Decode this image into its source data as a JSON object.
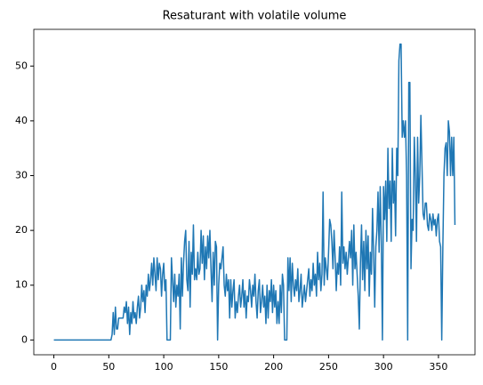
{
  "chart_data": {
    "type": "line",
    "title": "Resaturant with volatile volume",
    "x": [
      0,
      1,
      2,
      3,
      4,
      5,
      6,
      7,
      8,
      9,
      10,
      11,
      12,
      13,
      14,
      15,
      16,
      17,
      18,
      19,
      20,
      21,
      22,
      23,
      24,
      25,
      26,
      27,
      28,
      29,
      30,
      31,
      32,
      33,
      34,
      35,
      36,
      37,
      38,
      39,
      40,
      41,
      42,
      43,
      44,
      45,
      46,
      47,
      48,
      49,
      50,
      51,
      52,
      53,
      54,
      55,
      56,
      57,
      58,
      59,
      60,
      61,
      62,
      63,
      64,
      65,
      66,
      67,
      68,
      69,
      70,
      71,
      72,
      73,
      74,
      75,
      76,
      77,
      78,
      79,
      80,
      81,
      82,
      83,
      84,
      85,
      86,
      87,
      88,
      89,
      90,
      91,
      92,
      93,
      94,
      95,
      96,
      97,
      98,
      99,
      100,
      101,
      102,
      103,
      104,
      105,
      106,
      107,
      108,
      109,
      110,
      111,
      112,
      113,
      114,
      115,
      116,
      117,
      118,
      119,
      120,
      121,
      122,
      123,
      124,
      125,
      126,
      127,
      128,
      129,
      130,
      131,
      132,
      133,
      134,
      135,
      136,
      137,
      138,
      139,
      140,
      141,
      142,
      143,
      144,
      145,
      146,
      147,
      148,
      149,
      150,
      151,
      152,
      153,
      154,
      155,
      156,
      157,
      158,
      159,
      160,
      161,
      162,
      163,
      164,
      165,
      166,
      167,
      168,
      169,
      170,
      171,
      172,
      173,
      174,
      175,
      176,
      177,
      178,
      179,
      180,
      181,
      182,
      183,
      184,
      185,
      186,
      187,
      188,
      189,
      190,
      191,
      192,
      193,
      194,
      195,
      196,
      197,
      198,
      199,
      200,
      201,
      202,
      203,
      204,
      205,
      206,
      207,
      208,
      209,
      210,
      211,
      212,
      213,
      214,
      215,
      216,
      217,
      218,
      219,
      220,
      221,
      222,
      223,
      224,
      225,
      226,
      227,
      228,
      229,
      230,
      231,
      232,
      233,
      234,
      235,
      236,
      237,
      238,
      239,
      240,
      241,
      242,
      243,
      244,
      245,
      246,
      247,
      248,
      249,
      250,
      251,
      252,
      253,
      254,
      255,
      256,
      257,
      258,
      259,
      260,
      261,
      262,
      263,
      264,
      265,
      266,
      267,
      268,
      269,
      270,
      271,
      272,
      273,
      274,
      275,
      276,
      277,
      278,
      279,
      280,
      281,
      282,
      283,
      284,
      285,
      286,
      287,
      288,
      289,
      290,
      291,
      292,
      293,
      294,
      295,
      296,
      297,
      298,
      299,
      300,
      301,
      302,
      303,
      304,
      305,
      306,
      307,
      308,
      309,
      310,
      311,
      312,
      313,
      314,
      315,
      316,
      317,
      318,
      319,
      320,
      321,
      322,
      323,
      324,
      325,
      326,
      327,
      328,
      329,
      330,
      331,
      332,
      333,
      334,
      335,
      336,
      337,
      338,
      339,
      340,
      341,
      342,
      343,
      344,
      345,
      346,
      347,
      348,
      349,
      350,
      351,
      352,
      353,
      354,
      355,
      356,
      357,
      358,
      359,
      360,
      361,
      362,
      363,
      364,
      365
    ],
    "values": [
      0,
      0,
      0,
      0,
      0,
      0,
      0,
      0,
      0,
      0,
      0,
      0,
      0,
      0,
      0,
      0,
      0,
      0,
      0,
      0,
      0,
      0,
      0,
      0,
      0,
      0,
      0,
      0,
      0,
      0,
      0,
      0,
      0,
      0,
      0,
      0,
      0,
      0,
      0,
      0,
      0,
      0,
      0,
      0,
      0,
      0,
      0,
      0,
      0,
      0,
      0,
      0,
      0,
      1,
      5,
      1,
      6,
      2,
      2,
      4,
      4,
      4,
      4,
      4,
      6,
      5,
      7,
      3,
      6,
      1,
      5,
      3,
      7,
      4,
      5,
      3,
      6,
      8,
      4,
      6,
      10,
      7,
      9,
      5,
      10,
      8,
      12,
      9,
      11,
      14,
      10,
      15,
      12,
      9,
      15,
      11,
      14,
      13,
      8,
      12,
      14,
      9,
      11,
      0,
      0,
      0,
      0,
      15,
      11,
      7,
      12,
      6,
      10,
      8,
      12,
      2,
      15,
      8,
      14,
      18,
      20,
      11,
      9,
      18,
      6,
      16,
      12,
      21,
      11,
      13,
      11,
      16,
      12,
      13,
      20,
      14,
      19,
      11,
      17,
      13,
      19,
      15,
      20,
      13,
      7,
      16,
      10,
      18,
      17,
      0,
      10,
      14,
      13,
      15,
      17,
      10,
      8,
      12,
      9,
      11,
      4,
      11,
      6,
      9,
      11,
      4,
      7,
      5,
      8,
      10,
      6,
      8,
      11,
      6,
      9,
      4,
      8,
      7,
      11,
      9,
      6,
      10,
      8,
      12,
      7,
      4,
      9,
      11,
      5,
      7,
      10,
      6,
      8,
      3,
      10,
      4,
      9,
      7,
      11,
      5,
      10,
      6,
      9,
      3,
      7,
      3,
      10,
      5,
      12,
      10,
      0,
      0,
      0,
      15,
      9,
      15,
      7,
      14,
      10,
      8,
      11,
      9,
      13,
      7,
      9,
      12,
      6,
      8,
      10,
      7,
      9,
      11,
      13,
      8,
      11,
      9,
      14,
      10,
      12,
      8,
      16,
      11,
      14,
      9,
      12,
      27,
      10,
      15,
      13,
      11,
      16,
      22,
      21,
      18,
      13,
      20,
      15,
      9,
      14,
      12,
      17,
      10,
      27,
      14,
      17,
      13,
      16,
      12,
      15,
      18,
      15,
      20,
      10,
      21,
      13,
      16,
      12,
      8,
      2,
      14,
      21,
      11,
      18,
      9,
      20,
      13,
      19,
      8,
      16,
      12,
      24,
      16,
      6,
      17,
      20,
      27,
      16,
      28,
      18,
      0,
      28,
      22,
      29,
      18,
      35,
      24,
      29,
      18,
      35,
      25,
      29,
      19,
      35,
      30,
      51,
      54,
      54,
      37,
      40,
      37,
      40,
      30,
      0,
      47,
      47,
      13,
      22,
      20,
      37,
      30,
      18,
      37,
      25,
      30,
      41,
      32,
      23,
      22,
      25,
      25,
      21,
      20,
      23,
      22,
      20,
      23,
      21,
      22,
      19,
      22,
      23,
      18,
      17,
      0,
      17,
      30,
      35,
      36,
      30,
      40,
      38,
      30,
      37,
      30,
      37,
      21
    ],
    "color": "#1f77b4",
    "xlim": [
      -18.25,
      383.25
    ],
    "xticks": [
      0,
      50,
      100,
      150,
      200,
      250,
      300,
      350
    ],
    "ylim": [
      -2.7,
      56.7
    ],
    "yticks": [
      0,
      10,
      20,
      30,
      40,
      50
    ],
    "grid": false
  }
}
